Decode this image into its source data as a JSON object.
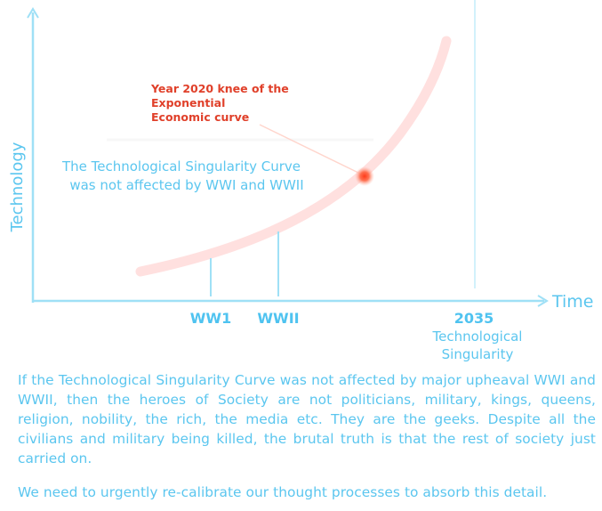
{
  "axes": {
    "x_label": "Time",
    "y_label": "Technology"
  },
  "markers": [
    {
      "label": "WW1"
    },
    {
      "label": "WWII"
    }
  ],
  "singularity": {
    "year": "2035",
    "caption_line1": "Technological",
    "caption_line2": "Singularity"
  },
  "annotation": {
    "line1": "Year 2020 knee of the",
    "line2": "Exponential",
    "line3": "Economic curve"
  },
  "curve_note": {
    "line1": "The Technological Singularity Curve",
    "line2": "was not affected by WWI and WWII"
  },
  "paragraphs": [
    "If the Technological Singularity Curve was not affected by major upheaval WWI and WWII, then the heroes of Society are not politicians, military, kings, queens, religion, nobility, the rich, the media etc. They are the geeks. Despite all the civilians and military being killed, the brutal truth is that the rest of society just carried on.",
    "We need to urgently re-calibrate our thought processes to absorb this detail."
  ],
  "colors": {
    "axis": "#9fe0f6",
    "text_blue": "#5bc6ef",
    "label_blue": "#4fc3f0",
    "curve": "#ffe0df",
    "annotation": "#e0402a",
    "dot": "#ff4a2a"
  }
}
